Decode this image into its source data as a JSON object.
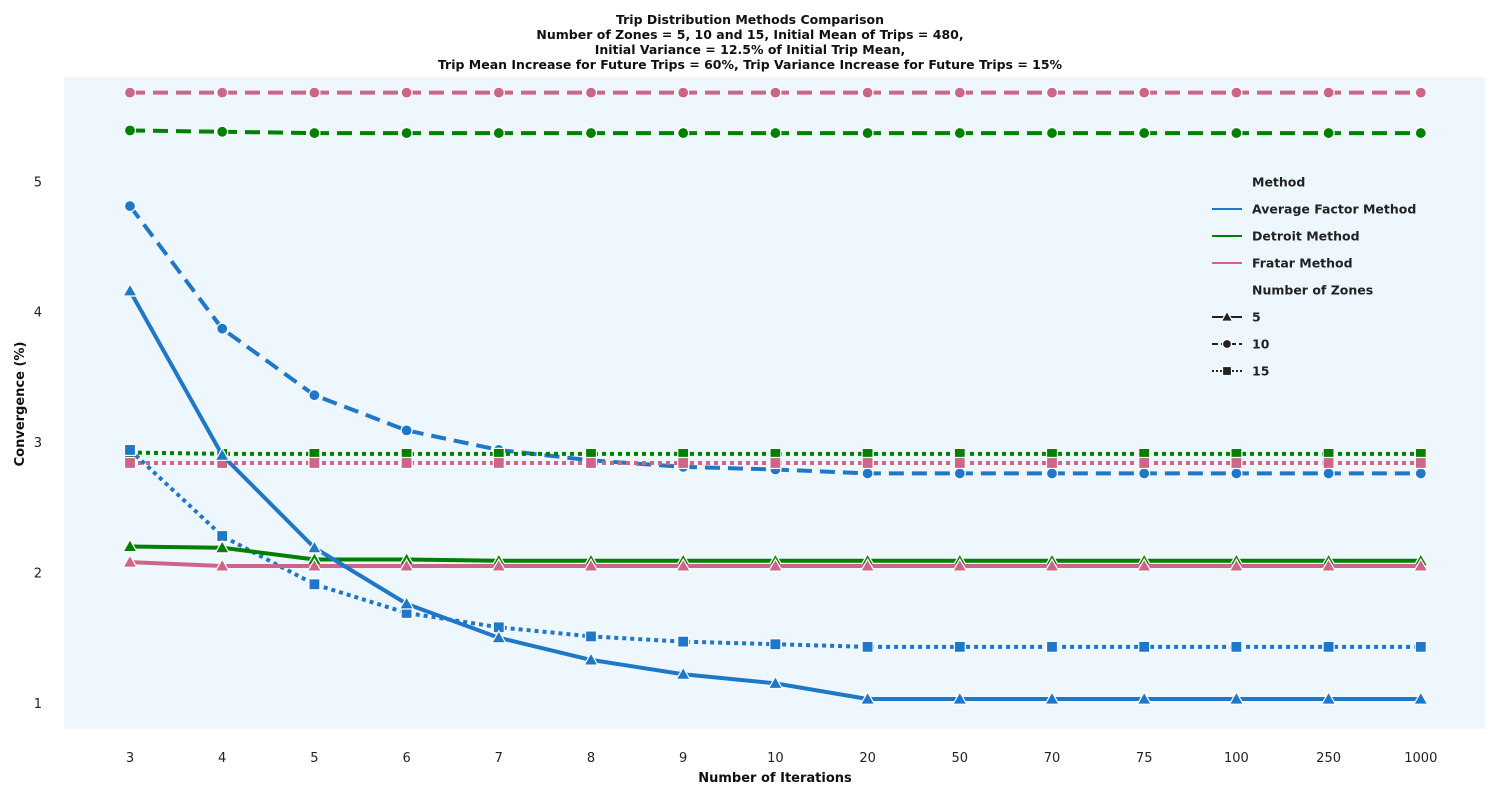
{
  "chart_data": {
    "type": "line",
    "title_lines": [
      "Trip Distribution Methods Comparison",
      "Number of Zones = 5, 10 and 15, Initial Mean of Trips = 480,",
      "Initial Variance = 12.5% of Initial Trip Mean,",
      "Trip Mean Increase for Future Trips = 60%, Trip Variance Increase for Future Trips = 15%"
    ],
    "xlabel": "Number of Iterations",
    "ylabel": "Convergence (%)",
    "x": [
      "3",
      "4",
      "5",
      "6",
      "7",
      "8",
      "9",
      "10",
      "20",
      "50",
      "70",
      "75",
      "100",
      "250",
      "1000"
    ],
    "ylim": [
      0.8,
      5.8
    ],
    "yticks": [
      1,
      2,
      3,
      4,
      5
    ],
    "grid": false,
    "background": "#eef7fd",
    "legend": {
      "placement": "right",
      "method_title": "Method",
      "methods": [
        {
          "name": "Average Factor Method",
          "color": "#1f77c8"
        },
        {
          "name": "Detroit Method",
          "color": "#008000"
        },
        {
          "name": "Fratar Method",
          "color": "#cc6688"
        }
      ],
      "zones_title": "Number of Zones",
      "zones": [
        {
          "name": "5",
          "marker": "triangle",
          "dash": "solid"
        },
        {
          "name": "10",
          "marker": "circle",
          "dash": "dashed"
        },
        {
          "name": "15",
          "marker": "square",
          "dash": "dotted"
        }
      ]
    },
    "series": [
      {
        "method": "Fratar Method",
        "zones": "10",
        "color": "#cc6688",
        "marker": "circle",
        "dash": "dashed",
        "values": [
          5.68,
          5.68,
          5.68,
          5.68,
          5.68,
          5.68,
          5.68,
          5.68,
          5.68,
          5.68,
          5.68,
          5.68,
          5.68,
          5.68,
          5.68
        ]
      },
      {
        "method": "Detroit Method",
        "zones": "10",
        "color": "#008000",
        "marker": "circle",
        "dash": "dashed",
        "values": [
          5.39,
          5.38,
          5.37,
          5.37,
          5.37,
          5.37,
          5.37,
          5.37,
          5.37,
          5.37,
          5.37,
          5.37,
          5.37,
          5.37,
          5.37
        ]
      },
      {
        "method": "Average Factor Method",
        "zones": "10",
        "color": "#1f77c8",
        "marker": "circle",
        "dash": "dashed",
        "values": [
          4.81,
          3.87,
          3.36,
          3.09,
          2.94,
          2.86,
          2.81,
          2.79,
          2.76,
          2.76,
          2.76,
          2.76,
          2.76,
          2.76,
          2.76
        ]
      },
      {
        "method": "Detroit Method",
        "zones": "15",
        "color": "#008000",
        "marker": "square",
        "dash": "dotted",
        "values": [
          2.92,
          2.91,
          2.91,
          2.91,
          2.91,
          2.91,
          2.91,
          2.91,
          2.91,
          2.91,
          2.91,
          2.91,
          2.91,
          2.91,
          2.91
        ]
      },
      {
        "method": "Fratar Method",
        "zones": "15",
        "color": "#cc6688",
        "marker": "square",
        "dash": "dotted",
        "values": [
          2.84,
          2.84,
          2.84,
          2.84,
          2.84,
          2.84,
          2.84,
          2.84,
          2.84,
          2.84,
          2.84,
          2.84,
          2.84,
          2.84,
          2.84
        ]
      },
      {
        "method": "Average Factor Method",
        "zones": "15",
        "color": "#1f77c8",
        "marker": "square",
        "dash": "dotted",
        "values": [
          2.94,
          2.28,
          1.91,
          1.69,
          1.58,
          1.51,
          1.47,
          1.45,
          1.43,
          1.43,
          1.43,
          1.43,
          1.43,
          1.43,
          1.43
        ]
      },
      {
        "method": "Detroit Method",
        "zones": "5",
        "color": "#008000",
        "marker": "triangle",
        "dash": "solid",
        "values": [
          2.2,
          2.19,
          2.1,
          2.1,
          2.09,
          2.09,
          2.09,
          2.09,
          2.09,
          2.09,
          2.09,
          2.09,
          2.09,
          2.09,
          2.09
        ]
      },
      {
        "method": "Fratar Method",
        "zones": "5",
        "color": "#cc6688",
        "marker": "triangle",
        "dash": "solid",
        "values": [
          2.08,
          2.05,
          2.05,
          2.05,
          2.05,
          2.05,
          2.05,
          2.05,
          2.05,
          2.05,
          2.05,
          2.05,
          2.05,
          2.05,
          2.05
        ]
      },
      {
        "method": "Average Factor Method",
        "zones": "5",
        "color": "#1f77c8",
        "marker": "triangle",
        "dash": "solid",
        "values": [
          4.16,
          2.9,
          2.19,
          1.76,
          1.5,
          1.33,
          1.22,
          1.15,
          1.03,
          1.03,
          1.03,
          1.03,
          1.03,
          1.03,
          1.03
        ]
      }
    ]
  }
}
